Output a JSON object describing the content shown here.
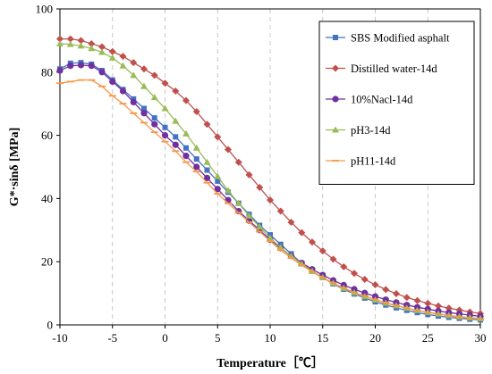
{
  "chart_data": {
    "type": "line",
    "title": "",
    "xlabel": "Temperature［℃］",
    "ylabel": "G*·sinδ [MPa]",
    "xlim": [
      -10,
      30
    ],
    "ylim": [
      0,
      100
    ],
    "x_ticks": [
      -10,
      -5,
      0,
      5,
      10,
      15,
      20,
      25,
      30
    ],
    "y_ticks": [
      0,
      20,
      40,
      60,
      80,
      100
    ],
    "grid": "vertical dashed at x ticks",
    "legend_position": "top-right",
    "x": [
      -10,
      -9,
      -8,
      -7,
      -6,
      -5,
      -4,
      -3,
      -2,
      -1,
      0,
      1,
      2,
      3,
      4,
      5,
      6,
      7,
      8,
      9,
      10,
      11,
      12,
      13,
      14,
      15,
      16,
      17,
      18,
      19,
      20,
      21,
      22,
      23,
      24,
      25,
      26,
      27,
      28,
      29,
      30
    ],
    "series": [
      {
        "name": "SBS Modified asphalt",
        "color": "#4472C4",
        "marker": "square",
        "values": [
          81,
          82.8,
          83,
          82.5,
          80.5,
          77.5,
          74.5,
          71.5,
          68.5,
          65.5,
          62.5,
          59.5,
          56,
          52.5,
          49,
          45.5,
          42,
          38.5,
          35,
          31.5,
          28.5,
          25.5,
          22.5,
          19.5,
          17,
          15,
          13,
          11.3,
          9.8,
          8.5,
          7.3,
          6.3,
          5.4,
          4.6,
          3.9,
          3.3,
          2.8,
          2.4,
          2.1,
          1.8,
          1.6
        ]
      },
      {
        "name": "Distilled water-14d",
        "color": "#C0504D",
        "marker": "diamond",
        "values": [
          90.5,
          90.5,
          90,
          89,
          88,
          86.5,
          85,
          83,
          81,
          79,
          76.5,
          74,
          71,
          67.5,
          63.5,
          59.5,
          55.5,
          51.5,
          47.5,
          43.5,
          39.5,
          36,
          32.5,
          29.2,
          26.2,
          23.4,
          20.8,
          18.4,
          16.3,
          14.4,
          12.7,
          11.2,
          9.9,
          8.7,
          7.7,
          6.8,
          6,
          5.3,
          4.7,
          4.1,
          3.6
        ]
      },
      {
        "name": "10%Nacl-14d",
        "color": "#7030A0",
        "marker": "circle",
        "values": [
          80.5,
          82,
          82.2,
          82,
          80,
          77,
          74,
          70.5,
          67,
          63.5,
          60,
          57,
          53.5,
          50,
          46.5,
          43,
          39.5,
          36,
          33,
          30,
          27,
          24.3,
          21.8,
          19.6,
          17.6,
          15.8,
          14.1,
          12.6,
          11.3,
          10.1,
          9,
          8,
          7.1,
          6.3,
          5.6,
          5,
          4.4,
          3.9,
          3.5,
          3.1,
          2.7
        ]
      },
      {
        "name": "pH3-14d",
        "color": "#9BBB59",
        "marker": "triangle",
        "values": [
          89,
          88.8,
          88.3,
          87.5,
          86.3,
          84.5,
          82,
          79,
          75.5,
          72,
          68.5,
          64.5,
          60.5,
          56,
          51.5,
          47,
          42.5,
          38.5,
          34.5,
          31,
          27.5,
          24.5,
          21.8,
          19.3,
          17,
          15,
          13.2,
          11.6,
          10.2,
          9,
          7.9,
          6.9,
          6.1,
          5.3,
          4.6,
          4,
          3.5,
          3,
          2.6,
          2.3,
          2
        ]
      },
      {
        "name": "pH11-14d",
        "color": "#F79646",
        "marker": "dash",
        "values": [
          76.5,
          77,
          77.5,
          77.5,
          75.5,
          72.5,
          70,
          67,
          64,
          61,
          58,
          55,
          51.5,
          48.5,
          45,
          41.5,
          38.5,
          35.5,
          32.5,
          29.5,
          26.5,
          23.7,
          21.2,
          18.9,
          16.8,
          14.9,
          13.2,
          11.7,
          10.3,
          9.1,
          8,
          7,
          6.1,
          5.3,
          4.6,
          4,
          3.4,
          2.9,
          2.4,
          2.1,
          1.8
        ]
      }
    ]
  }
}
